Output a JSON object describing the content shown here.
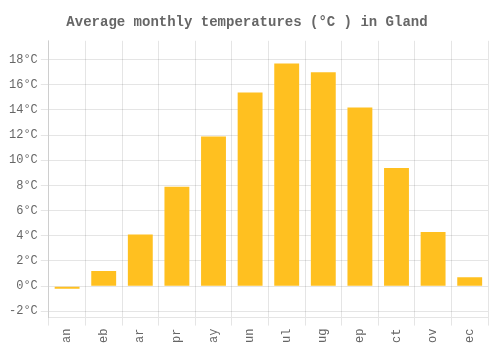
{
  "chart_data": {
    "type": "bar",
    "title": "Average monthly temperatures (°C ) in Gland",
    "categories": [
      "an",
      "eb",
      "ar",
      "pr",
      "ay",
      "un",
      "ul",
      "ug",
      "ep",
      "ct",
      "ov",
      "ec"
    ],
    "values": [
      -0.2,
      1.2,
      4.1,
      7.9,
      11.9,
      15.4,
      17.7,
      17.0,
      14.2,
      9.4,
      4.3,
      0.7
    ],
    "color": "#FFC020",
    "ylim": [
      -2.5,
      19.5
    ],
    "yticks": [
      {
        "value": -2,
        "label": "-2°C"
      },
      {
        "value": 0,
        "label": "0°C"
      },
      {
        "value": 2,
        "label": "2°C"
      },
      {
        "value": 4,
        "label": "4°C"
      },
      {
        "value": 6,
        "label": "6°C"
      },
      {
        "value": 8,
        "label": "8°C"
      },
      {
        "value": 10,
        "label": "10°C"
      },
      {
        "value": 12,
        "label": "12°C"
      },
      {
        "value": 14,
        "label": "14°C"
      },
      {
        "value": 16,
        "label": "16°C"
      },
      {
        "value": 18,
        "label": "18°C"
      }
    ],
    "grid": true
  }
}
